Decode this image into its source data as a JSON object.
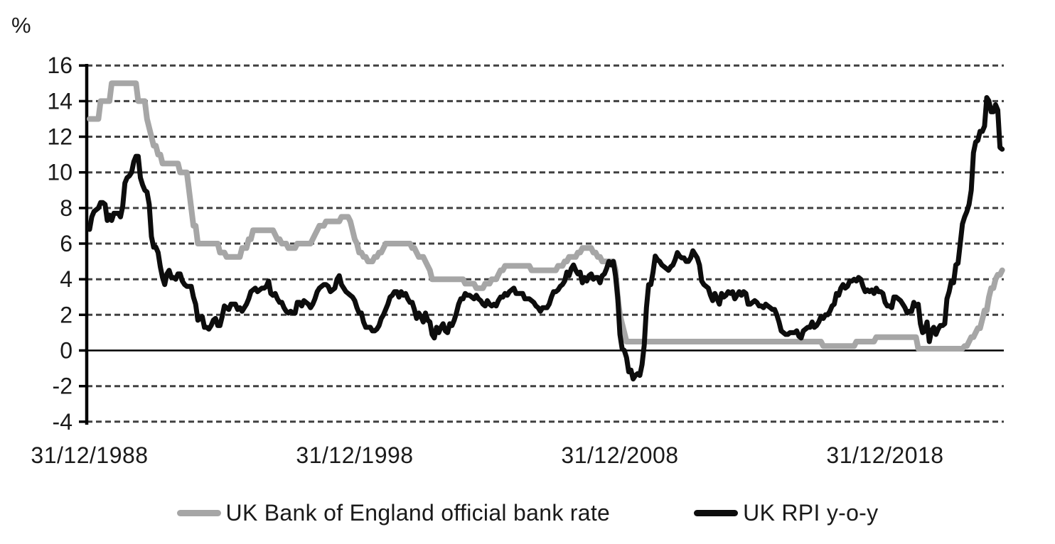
{
  "chart_data": {
    "type": "line",
    "title": "",
    "ylabel": "%",
    "xlabel": "",
    "ylim": [
      -4,
      16
    ],
    "y_ticks": [
      16,
      14,
      12,
      10,
      8,
      6,
      4,
      2,
      0,
      -2,
      -4
    ],
    "zero_line": "solid",
    "grid": "horizontal-dashed",
    "legend_position": "bottom-center",
    "x_tick_labels": [
      "31/12/1988",
      "31/12/1998",
      "31/12/2008",
      "31/12/2018"
    ],
    "x_tick_positions_months": [
      0,
      120,
      240,
      360
    ],
    "x_start_label": "31/12/1988",
    "frequency": "monthly",
    "colors": {
      "bank_rate": "#a6a6a6",
      "rpi": "#0d0d0d",
      "gridline": "#404040",
      "axis": "#000000",
      "text": "#1a1a1a"
    },
    "series": [
      {
        "name": "UK Bank of England official bank rate",
        "color": "#a6a6a6",
        "values": [
          13,
          13,
          13,
          13,
          13,
          14,
          14,
          14,
          14,
          14,
          15,
          15,
          15,
          15,
          15,
          15,
          15,
          15,
          15,
          15,
          15,
          15,
          14,
          14,
          14,
          14,
          13,
          12.5,
          12,
          11.5,
          11.5,
          11,
          11,
          10.5,
          10.5,
          10.5,
          10.5,
          10.5,
          10.5,
          10.5,
          10.5,
          10,
          10,
          10,
          10,
          9,
          8,
          7,
          7,
          6,
          6,
          6,
          6,
          6,
          6,
          6,
          6,
          6,
          6,
          5.5,
          5.5,
          5.5,
          5.25,
          5.25,
          5.25,
          5.25,
          5.25,
          5.25,
          5.25,
          5.75,
          5.75,
          5.75,
          6.25,
          6.25,
          6.75,
          6.75,
          6.75,
          6.75,
          6.75,
          6.75,
          6.75,
          6.75,
          6.75,
          6.75,
          6.5,
          6.25,
          6.25,
          6,
          6,
          6,
          5.75,
          5.75,
          5.75,
          5.75,
          6,
          6,
          6,
          6,
          6,
          6,
          6,
          6.25,
          6.5,
          6.75,
          7,
          7,
          7,
          7.25,
          7.25,
          7.25,
          7.25,
          7.25,
          7.25,
          7.25,
          7.5,
          7.5,
          7.5,
          7.5,
          7.25,
          6.75,
          6.25,
          6,
          5.5,
          5.5,
          5.25,
          5.25,
          5,
          5,
          5,
          5.25,
          5.25,
          5.5,
          5.5,
          5.75,
          6,
          6,
          6,
          6,
          6,
          6,
          6,
          6,
          6,
          6,
          6,
          6,
          5.75,
          5.75,
          5.5,
          5.25,
          5.25,
          5.25,
          5,
          4.75,
          4.5,
          4,
          4,
          4,
          4,
          4,
          4,
          4,
          4,
          4,
          4,
          4,
          4,
          4,
          4,
          4,
          3.75,
          3.75,
          3.75,
          3.75,
          3.75,
          3.5,
          3.5,
          3.5,
          3.5,
          3.75,
          3.75,
          3.75,
          4,
          4,
          4,
          4.25,
          4.5,
          4.5,
          4.75,
          4.75,
          4.75,
          4.75,
          4.75,
          4.75,
          4.75,
          4.75,
          4.75,
          4.75,
          4.75,
          4.75,
          4.5,
          4.5,
          4.5,
          4.5,
          4.5,
          4.5,
          4.5,
          4.5,
          4.5,
          4.5,
          4.5,
          4.5,
          4.75,
          4.75,
          4.75,
          5,
          5,
          5.25,
          5.25,
          5.25,
          5.25,
          5.5,
          5.5,
          5.75,
          5.75,
          5.75,
          5.75,
          5.75,
          5.5,
          5.5,
          5.25,
          5.25,
          5,
          5,
          5,
          5,
          5,
          5,
          4.5,
          3,
          2,
          1.5,
          1,
          0.5,
          0.5,
          0.5,
          0.5,
          0.5,
          0.5,
          0.5,
          0.5,
          0.5,
          0.5,
          0.5,
          0.5,
          0.5,
          0.5,
          0.5,
          0.5,
          0.5,
          0.5,
          0.5,
          0.5,
          0.5,
          0.5,
          0.5,
          0.5,
          0.5,
          0.5,
          0.5,
          0.5,
          0.5,
          0.5,
          0.5,
          0.5,
          0.5,
          0.5,
          0.5,
          0.5,
          0.5,
          0.5,
          0.5,
          0.5,
          0.5,
          0.5,
          0.5,
          0.5,
          0.5,
          0.5,
          0.5,
          0.5,
          0.5,
          0.5,
          0.5,
          0.5,
          0.5,
          0.5,
          0.5,
          0.5,
          0.5,
          0.5,
          0.5,
          0.5,
          0.5,
          0.5,
          0.5,
          0.5,
          0.5,
          0.5,
          0.5,
          0.5,
          0.5,
          0.5,
          0.5,
          0.5,
          0.5,
          0.5,
          0.5,
          0.5,
          0.5,
          0.5,
          0.5,
          0.5,
          0.5,
          0.5,
          0.5,
          0.5,
          0.5,
          0.5,
          0.5,
          0.5,
          0.5,
          0.25,
          0.25,
          0.25,
          0.25,
          0.25,
          0.25,
          0.25,
          0.25,
          0.25,
          0.25,
          0.25,
          0.25,
          0.25,
          0.25,
          0.25,
          0.5,
          0.5,
          0.5,
          0.5,
          0.5,
          0.5,
          0.5,
          0.5,
          0.5,
          0.75,
          0.75,
          0.75,
          0.75,
          0.75,
          0.75,
          0.75,
          0.75,
          0.75,
          0.75,
          0.75,
          0.75,
          0.75,
          0.75,
          0.75,
          0.75,
          0.75,
          0.75,
          0.75,
          0.1,
          0.1,
          0.1,
          0.1,
          0.1,
          0.1,
          0.1,
          0.1,
          0.1,
          0.1,
          0.1,
          0.1,
          0.1,
          0.1,
          0.1,
          0.1,
          0.1,
          0.1,
          0.1,
          0.1,
          0.1,
          0.25,
          0.25,
          0.5,
          0.75,
          0.75,
          1,
          1.25,
          1.25,
          1.75,
          2.25,
          2.25,
          3,
          3.5,
          3.5,
          4,
          4.25,
          4.25,
          4.5
        ]
      },
      {
        "name": "UK RPI y-o-y",
        "color": "#0d0d0d",
        "values": [
          6.8,
          7.5,
          7.8,
          7.9,
          8.0,
          8.3,
          8.3,
          8.2,
          7.3,
          7.6,
          7.3,
          7.7,
          7.7,
          7.7,
          7.5,
          8.1,
          9.4,
          9.7,
          9.8,
          10.0,
          10.6,
          10.9,
          10.9,
          9.7,
          9.3,
          9.0,
          8.9,
          8.2,
          6.4,
          5.8,
          5.8,
          5.5,
          4.7,
          4.1,
          3.7,
          4.3,
          4.5,
          4.1,
          4.1,
          4.0,
          4.3,
          4.3,
          3.9,
          3.7,
          3.6,
          3.6,
          3.6,
          3.0,
          2.6,
          1.7,
          1.8,
          1.9,
          1.3,
          1.3,
          1.2,
          1.4,
          1.7,
          1.8,
          1.4,
          1.4,
          1.9,
          2.5,
          2.4,
          2.3,
          2.6,
          2.6,
          2.6,
          2.3,
          2.4,
          2.2,
          2.4,
          2.6,
          2.9,
          3.3,
          3.4,
          3.5,
          3.3,
          3.4,
          3.5,
          3.5,
          3.6,
          3.9,
          3.2,
          3.1,
          3.2,
          2.9,
          2.7,
          2.7,
          2.4,
          2.2,
          2.1,
          2.2,
          2.1,
          2.1,
          2.7,
          2.7,
          2.5,
          2.8,
          2.7,
          2.6,
          2.4,
          2.6,
          2.9,
          3.3,
          3.5,
          3.6,
          3.7,
          3.7,
          3.6,
          3.3,
          3.4,
          3.5,
          4.0,
          4.2,
          3.7,
          3.5,
          3.3,
          3.2,
          3.1,
          3.0,
          2.8,
          2.4,
          2.1,
          2.1,
          1.6,
          1.3,
          1.3,
          1.3,
          1.1,
          1.1,
          1.2,
          1.4,
          1.8,
          2.0,
          2.3,
          2.6,
          3.0,
          3.1,
          3.3,
          3.3,
          3.0,
          3.3,
          3.1,
          3.2,
          2.9,
          2.7,
          2.7,
          2.3,
          1.8,
          2.1,
          1.9,
          1.6,
          2.1,
          1.7,
          1.6,
          0.9,
          0.7,
          1.3,
          1.0,
          1.3,
          1.5,
          1.1,
          1.0,
          1.5,
          1.4,
          1.7,
          2.1,
          2.6,
          2.9,
          2.9,
          3.2,
          3.1,
          3.1,
          3.0,
          2.9,
          3.1,
          2.9,
          2.8,
          2.6,
          2.5,
          2.8,
          2.6,
          2.5,
          2.6,
          2.5,
          2.8,
          3.0,
          3.0,
          3.2,
          3.1,
          3.3,
          3.4,
          3.5,
          3.2,
          3.2,
          3.2,
          3.2,
          2.9,
          2.9,
          2.9,
          2.8,
          2.7,
          2.5,
          2.4,
          2.2,
          2.4,
          2.4,
          2.4,
          2.6,
          3.0,
          3.3,
          3.3,
          3.4,
          3.6,
          3.7,
          3.9,
          4.4,
          4.2,
          4.6,
          4.8,
          4.5,
          4.3,
          4.4,
          3.8,
          4.1,
          3.9,
          4.2,
          4.3,
          4.0,
          4.1,
          4.1,
          3.8,
          4.2,
          4.3,
          4.6,
          5.0,
          4.8,
          5.0,
          4.2,
          3.0,
          0.9,
          0.1,
          0.0,
          -0.4,
          -1.2,
          -1.1,
          -1.6,
          -1.4,
          -1.3,
          -1.4,
          -0.8,
          0.3,
          2.4,
          3.7,
          3.7,
          4.4,
          5.3,
          5.1,
          5.0,
          4.8,
          4.7,
          4.6,
          4.5,
          4.7,
          4.8,
          5.1,
          5.5,
          5.3,
          5.2,
          5.2,
          5.0,
          5.0,
          5.2,
          5.6,
          5.4,
          5.2,
          4.8,
          3.9,
          3.7,
          3.6,
          3.5,
          3.1,
          2.8,
          3.2,
          2.9,
          2.6,
          3.2,
          3.0,
          3.1,
          3.3,
          3.2,
          3.3,
          2.9,
          3.1,
          3.3,
          3.1,
          3.3,
          3.2,
          2.6,
          2.6,
          2.7,
          2.8,
          2.7,
          2.5,
          2.5,
          2.4,
          2.6,
          2.5,
          2.4,
          2.3,
          2.3,
          2.0,
          1.6,
          1.1,
          1.0,
          0.9,
          0.9,
          1.0,
          1.0,
          1.0,
          1.1,
          0.8,
          0.7,
          1.1,
          1.2,
          1.3,
          1.3,
          1.6,
          1.3,
          1.4,
          1.6,
          1.9,
          1.8,
          2.0,
          2.0,
          2.2,
          2.5,
          2.6,
          3.2,
          3.1,
          3.5,
          3.7,
          3.5,
          3.6,
          3.9,
          3.9,
          4.0,
          3.9,
          4.1,
          4.0,
          3.6,
          3.3,
          3.4,
          3.3,
          3.4,
          3.2,
          3.5,
          3.3,
          3.3,
          3.2,
          2.7,
          2.5,
          2.5,
          2.4,
          3.0,
          3.0,
          2.9,
          2.8,
          2.6,
          2.4,
          2.1,
          2.2,
          2.2,
          2.7,
          2.5,
          2.6,
          1.5,
          1.0,
          1.1,
          1.6,
          0.5,
          1.1,
          1.3,
          0.9,
          1.2,
          1.4,
          1.4,
          1.5,
          2.9,
          3.3,
          3.9,
          3.8,
          4.8,
          4.9,
          6.0,
          7.1,
          7.5,
          7.8,
          8.2,
          9.0,
          11.1,
          11.7,
          11.8,
          12.3,
          12.3,
          12.6,
          14.2,
          14.0,
          13.4,
          13.4,
          13.8,
          13.5,
          11.4,
          11.3
        ]
      }
    ]
  },
  "legend": {
    "items": [
      {
        "label": "UK Bank of England official bank rate",
        "color": "#a6a6a6"
      },
      {
        "label": "UK RPI y-o-y",
        "color": "#0d0d0d"
      }
    ]
  }
}
